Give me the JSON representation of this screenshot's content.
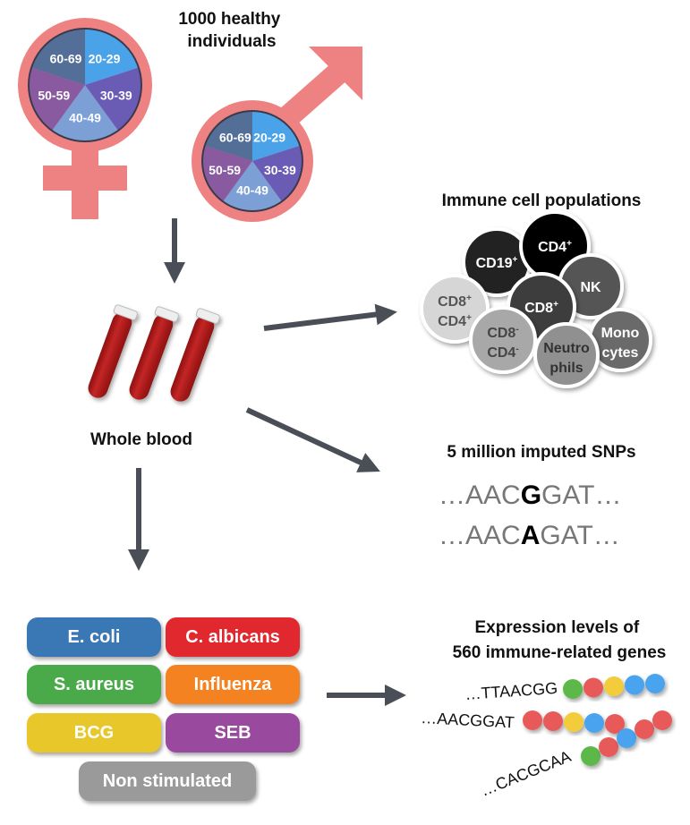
{
  "cohort": {
    "title_line1": "1000 healthy",
    "title_line2": "individuals",
    "age_groups": [
      "20-29",
      "30-39",
      "40-49",
      "50-59",
      "60-69"
    ],
    "age_colors": [
      "#4aa3e8",
      "#6a5bb5",
      "#7c9fd6",
      "#8a5aa0",
      "#536f98"
    ],
    "symbol_color": "#ee8282"
  },
  "blood": {
    "label": "Whole blood",
    "tube_color": "#b51d1d"
  },
  "immune": {
    "title": "Immune cell populations",
    "cells": [
      {
        "line1": "CD19",
        "sup1": "+",
        "line2": "",
        "sup2": "",
        "fill": "#222222",
        "text": "#ffffff"
      },
      {
        "line1": "CD4",
        "sup1": "+",
        "line2": "",
        "sup2": "",
        "fill": "#000000",
        "text": "#ffffff"
      },
      {
        "line1": "NK",
        "sup1": "",
        "line2": "",
        "sup2": "",
        "fill": "#555555",
        "text": "#ffffff"
      },
      {
        "line1": "CD8",
        "sup1": "+",
        "line2": "CD4",
        "sup2": "+",
        "fill": "#d6d6d6",
        "text": "#555555"
      },
      {
        "line1": "CD8",
        "sup1": "+",
        "line2": "",
        "sup2": "",
        "fill": "#3d3d3d",
        "text": "#ffffff"
      },
      {
        "line1": "Mono",
        "sup1": "",
        "line2": "cytes",
        "sup2": "",
        "fill": "#6a6a6a",
        "text": "#ffffff"
      },
      {
        "line1": "CD8",
        "sup1": "-",
        "line2": "CD4",
        "sup2": "-",
        "fill": "#a8a8a8",
        "text": "#444444"
      },
      {
        "line1": "Neutro",
        "sup1": "",
        "line2": "phils",
        "sup2": "",
        "fill": "#909090",
        "text": "#333333"
      }
    ]
  },
  "snps": {
    "title": "5 million imputed SNPs",
    "seq1": {
      "pre": "…AAC",
      "allele": "G",
      "post": "GAT…"
    },
    "seq2": {
      "pre": "…AAC",
      "allele": "A",
      "post": "GAT…"
    }
  },
  "stimuli": [
    {
      "label": "E. coli",
      "color": "#3a78b5"
    },
    {
      "label": "C. albicans",
      "color": "#e0282e"
    },
    {
      "label": "S. aureus",
      "color": "#4aaa4a"
    },
    {
      "label": "Influenza",
      "color": "#f58220"
    },
    {
      "label": "BCG",
      "color": "#e8c72a"
    },
    {
      "label": "SEB",
      "color": "#9a4a9e"
    },
    {
      "label": "Non stimulated",
      "color": "#9a9a9a"
    }
  ],
  "expression": {
    "title_line1": "Expression levels of",
    "title_line2": "560 immune-related genes",
    "genes": [
      {
        "seq": "…TTAACGG",
        "beads": [
          "#5cb848",
          "#e85a5a",
          "#f2cc3a",
          "#4aa3ee",
          "#4aa3ee"
        ]
      },
      {
        "seq": "…AACGGAT",
        "beads": [
          "#e85a5a",
          "#e85a5a",
          "#f2cc3a",
          "#4aa3ee",
          "#e85a5a"
        ]
      },
      {
        "seq": "…CACGCAA",
        "beads": [
          "#5cb848",
          "#e85a5a",
          "#4aa3ee",
          "#e85a5a",
          "#e85a5a"
        ]
      }
    ]
  },
  "arrow_color": "#4a4f57"
}
